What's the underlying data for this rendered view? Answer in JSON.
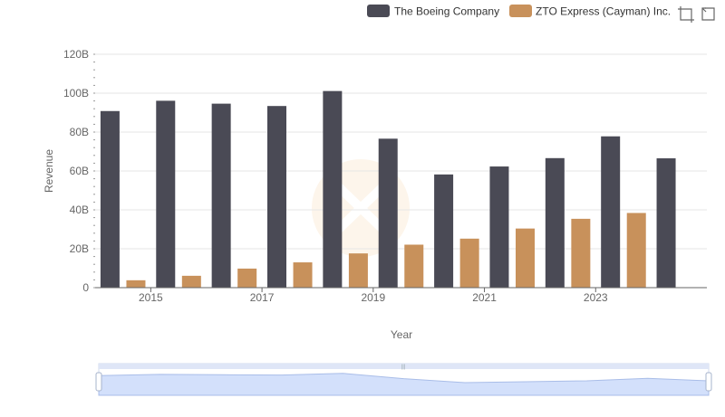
{
  "chart_data": {
    "type": "bar",
    "categories": [
      "2014",
      "2015",
      "2016",
      "2017",
      "2018",
      "2019",
      "2020",
      "2021",
      "2022",
      "2023",
      "2024"
    ],
    "x_tick_labels": [
      "2015",
      "2017",
      "2019",
      "2021",
      "2023"
    ],
    "xlabel": "Year",
    "ylabel": "Revenue",
    "ylim": [
      0,
      120000000000
    ],
    "y_ticks": [
      0,
      20000000000,
      40000000000,
      60000000000,
      80000000000,
      100000000000,
      120000000000
    ],
    "y_tick_labels": [
      "0",
      "20B",
      "40B",
      "60B",
      "80B",
      "100B",
      "120B"
    ],
    "grid": true,
    "legend_position": "top-right",
    "series": [
      {
        "name": "The Boeing Company",
        "color": "#4a4a55",
        "values": [
          90800000000,
          96100000000,
          94600000000,
          93400000000,
          101100000000,
          76600000000,
          58200000000,
          62300000000,
          66600000000,
          77800000000,
          66500000000
        ]
      },
      {
        "name": "ZTO Express (Cayman) Inc.",
        "color": "#c8915b",
        "values": [
          3800000000,
          6100000000,
          9800000000,
          13000000000,
          17600000000,
          22100000000,
          25200000000,
          30400000000,
          35400000000,
          38400000000,
          null
        ]
      }
    ]
  },
  "toolbox": {
    "zoom_icon": "data-zoom-icon",
    "reset_icon": "zoom-reset-icon"
  },
  "slider": {
    "fill_color": "#d6e2ff",
    "border_color": "#c9d4ee",
    "range_start": 0,
    "range_end": 1
  }
}
